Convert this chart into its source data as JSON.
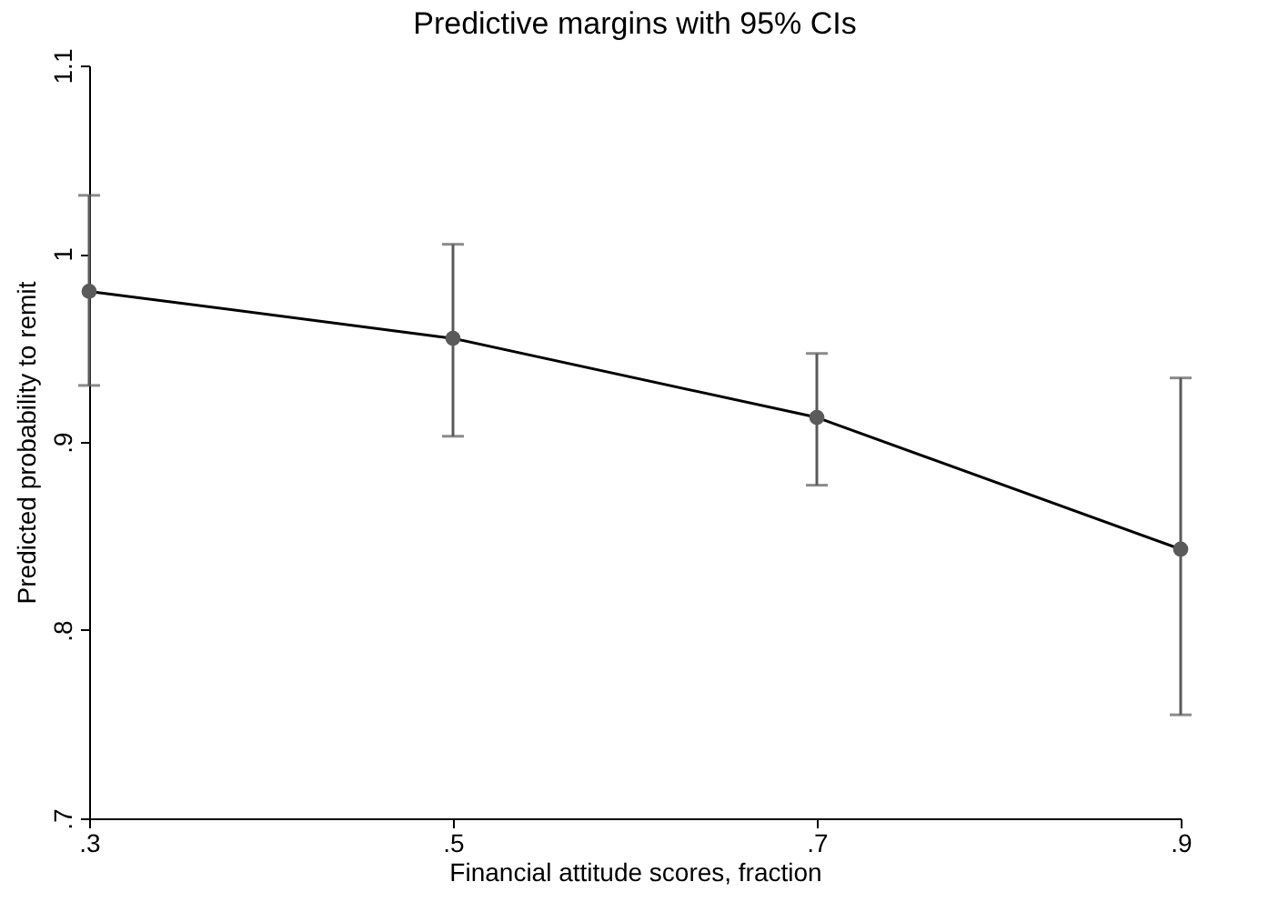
{
  "chart_data": {
    "type": "line",
    "title": "Predictive margins with 95% CIs",
    "xlabel": "Financial attitude scores, fraction",
    "ylabel": "Predicted probability to remit",
    "x": [
      0.3,
      0.5,
      0.7,
      0.9
    ],
    "series": [
      {
        "color": "#000000",
        "values": [
          0.98,
          0.955,
          0.913,
          0.843
        ],
        "errors": [
          [
            0.93,
            1.031
          ],
          [
            0.903,
            1.005
          ],
          [
            0.877,
            0.947
          ],
          [
            0.755,
            0.934
          ]
        ]
      }
    ],
    "xlim": [
      0.3,
      0.9
    ],
    "xticks": [
      {
        "value": 0.3,
        "label": ".3"
      },
      {
        "value": 0.5,
        "label": ".5"
      },
      {
        "value": 0.7,
        "label": ".7"
      },
      {
        "value": 0.9,
        "label": ".9"
      }
    ],
    "ylim": [
      0.7,
      1.1
    ],
    "yticks": [
      {
        "value": 0.7,
        "label": ".7"
      },
      {
        "value": 0.8,
        "label": ".8"
      },
      {
        "value": 0.9,
        "label": ".9"
      },
      1,
      1.1
    ],
    "marker": "circle",
    "grid": false
  }
}
